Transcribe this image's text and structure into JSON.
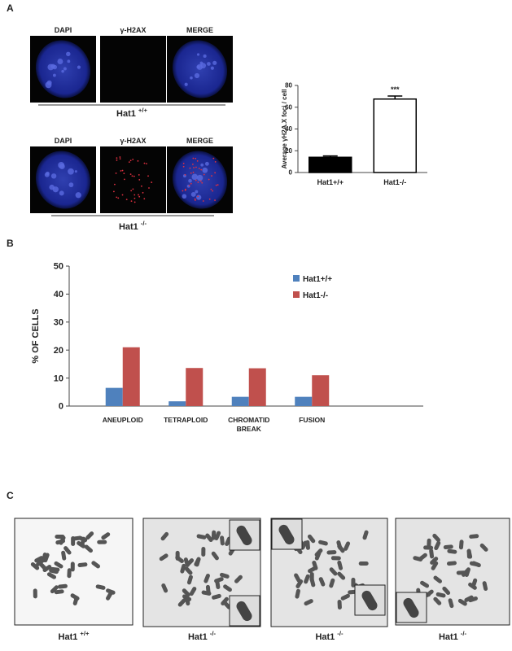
{
  "panel_labels": [
    "A",
    "B",
    "C"
  ],
  "panel_a": {
    "groups": [
      {
        "channels": [
          "DAPI",
          "γ-H2AX",
          "MERGE"
        ],
        "name": "Hat1",
        "sup": "+/+"
      },
      {
        "channels": [
          "DAPI",
          "γ-H2AX",
          "MERGE"
        ],
        "name": "Hat1",
        "sup": "-/-"
      }
    ]
  },
  "panel_c": {
    "images": [
      {
        "name": "Hat1",
        "sup": "+/+"
      },
      {
        "name": "Hat1",
        "sup": "-/-"
      },
      {
        "name": "Hat1",
        "sup": "-/-"
      },
      {
        "name": "Hat1",
        "sup": "-/-"
      }
    ]
  },
  "chart_data": [
    {
      "type": "bar",
      "y_label": "Average γH2A.X foci / cell",
      "categories": [
        "Hat1+/+",
        "Hat1-/-"
      ],
      "values": [
        14,
        67.5
      ],
      "errors": [
        1.2,
        2.8
      ],
      "colors": [
        "#000000",
        "#ffffff"
      ],
      "significance": [
        null,
        "***"
      ],
      "ylim": [
        0,
        80
      ],
      "yticks": [
        0,
        20,
        40,
        60,
        80
      ]
    },
    {
      "type": "grouped_bar",
      "y_label": "% OF CELLS",
      "categories": [
        "ANEUPLOID",
        "TETRAPLOID",
        "CHROMATID BREAK",
        "FUSION"
      ],
      "series": [
        {
          "name": "Hat1+/+",
          "color": "#4f81bd",
          "values": [
            6.5,
            1.7,
            3.3,
            3.3
          ]
        },
        {
          "name": "Hat1-/-",
          "color": "#c0504d",
          "values": [
            21,
            13.6,
            13.5,
            11
          ]
        }
      ],
      "ylim": [
        0,
        50
      ],
      "yticks": [
        0,
        10,
        20,
        30,
        40,
        50
      ],
      "legend": "top-right"
    }
  ]
}
